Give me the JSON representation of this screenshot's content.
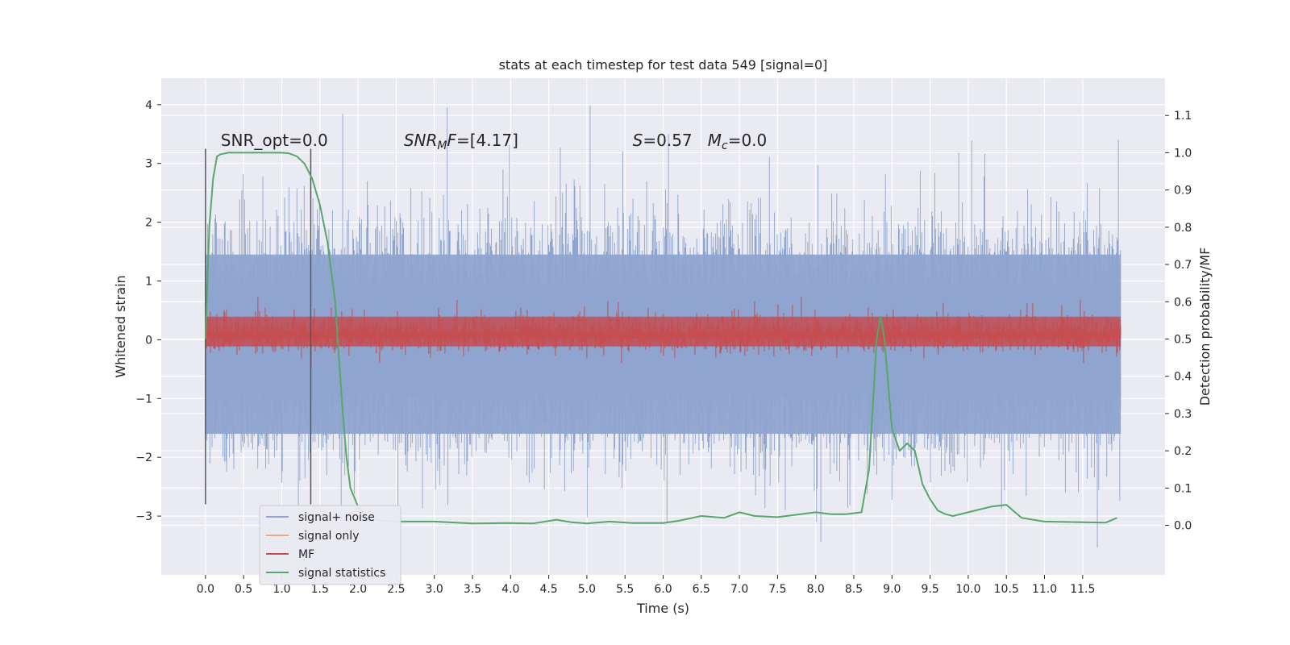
{
  "chart_data": {
    "type": "line",
    "title": "stats at each timestep for test data 549 [signal=0]",
    "xlabel": "Time (s)",
    "ylabel_left": "Whitened strain",
    "ylabel_right": "Detection probability/MF",
    "xlim": [
      -0.58,
      12.58
    ],
    "ylim_left": [
      -4.0,
      4.45
    ],
    "ylim_right": [
      -0.133,
      1.2
    ],
    "x_ticks": [
      0.0,
      0.5,
      1.0,
      1.5,
      2.0,
      2.5,
      3.0,
      3.5,
      4.0,
      4.5,
      5.0,
      5.5,
      6.0,
      6.5,
      7.0,
      7.5,
      8.0,
      8.5,
      9.0,
      9.5,
      10.0,
      10.5,
      11.0,
      11.5
    ],
    "x_tick_labels": [
      "0.0",
      "0.5",
      "1.0",
      "1.5",
      "2.0",
      "2.5",
      "3.0",
      "3.5",
      "4.0",
      "4.5",
      "5.0",
      "5.5",
      "6.0",
      "6.5",
      "7.0",
      "7.5",
      "8.0",
      "8.5",
      "9.0",
      "9.5",
      "10.0",
      "10.5",
      "11.0",
      "11.5"
    ],
    "y_left_ticks": [
      -3,
      -2,
      -1,
      0,
      1,
      2,
      3,
      4
    ],
    "y_left_tick_labels": [
      "−3",
      "−2",
      "−1",
      "0",
      "1",
      "2",
      "3",
      "4"
    ],
    "y_right_ticks": [
      0.0,
      0.1,
      0.2,
      0.3,
      0.4,
      0.5,
      0.6,
      0.7,
      0.8,
      0.9,
      1.0,
      1.1
    ],
    "y_right_tick_labels": [
      "0.0",
      "0.1",
      "0.2",
      "0.3",
      "0.4",
      "0.5",
      "0.6",
      "0.7",
      "0.8",
      "0.9",
      "1.0",
      "1.1"
    ],
    "grid": true,
    "legend_placement": "lower-left",
    "annotations": [
      {
        "text": "SNR_opt=0.0",
        "x": 0.2,
        "y": 3.3
      },
      {
        "text": "SNR_MF=[4.17]",
        "x": 2.6,
        "y": 3.3
      },
      {
        "text": "S=0.57   M_c=0.0",
        "x": 5.6,
        "y": 3.3
      }
    ],
    "vertical_lines": [
      {
        "x": 0.0,
        "y_range": [
          -2.8,
          3.25
        ]
      },
      {
        "x": 1.38,
        "y_range": [
          -2.8,
          3.25
        ]
      }
    ],
    "series": [
      {
        "name": "signal+ noise",
        "axis": "left",
        "color": "#8fa5cf",
        "noise": {
          "x_range": [
            0.0,
            12.0
          ],
          "dense_envelope": [
            -1.6,
            1.45
          ],
          "typical_spikes": [
            -2.3,
            2.4
          ],
          "max": 4.1,
          "min": -3.65
        }
      },
      {
        "name": "signal only",
        "axis": "left",
        "color": "#e8a88a",
        "x": [
          0.0,
          12.0
        ],
        "values": [
          0.0,
          0.0
        ]
      },
      {
        "name": "MF",
        "axis": "right",
        "color": "#c44e52",
        "noise": {
          "x_range": [
            0.0,
            12.0
          ],
          "band": [
            0.48,
            0.56
          ],
          "spike_max": 0.62
        }
      },
      {
        "name": "signal statistics",
        "axis": "right",
        "color": "#55a868",
        "x": [
          0.0,
          0.05,
          0.1,
          0.15,
          0.2,
          0.3,
          0.5,
          0.8,
          1.0,
          1.1,
          1.2,
          1.3,
          1.4,
          1.5,
          1.6,
          1.7,
          1.75,
          1.8,
          1.85,
          1.9,
          2.0,
          2.1,
          2.2,
          2.5,
          3.0,
          3.5,
          4.0,
          4.3,
          4.6,
          4.8,
          5.0,
          5.3,
          5.6,
          6.0,
          6.2,
          6.5,
          6.8,
          7.0,
          7.2,
          7.5,
          8.0,
          8.2,
          8.4,
          8.6,
          8.7,
          8.8,
          8.85,
          8.9,
          8.95,
          9.0,
          9.1,
          9.2,
          9.3,
          9.4,
          9.5,
          9.6,
          9.7,
          9.8,
          10.0,
          10.3,
          10.5,
          10.7,
          11.0,
          11.5,
          11.8,
          11.95
        ],
        "values": [
          0.5,
          0.8,
          0.93,
          0.99,
          0.996,
          1.0,
          1.0,
          1.0,
          1.0,
          0.998,
          0.99,
          0.97,
          0.93,
          0.86,
          0.76,
          0.6,
          0.45,
          0.3,
          0.18,
          0.1,
          0.05,
          0.025,
          0.015,
          0.01,
          0.01,
          0.005,
          0.006,
          0.005,
          0.015,
          0.008,
          0.005,
          0.01,
          0.006,
          0.006,
          0.012,
          0.025,
          0.02,
          0.035,
          0.025,
          0.022,
          0.035,
          0.03,
          0.03,
          0.035,
          0.15,
          0.5,
          0.56,
          0.5,
          0.38,
          0.26,
          0.2,
          0.22,
          0.2,
          0.11,
          0.07,
          0.04,
          0.03,
          0.025,
          0.035,
          0.05,
          0.055,
          0.02,
          0.01,
          0.008,
          0.007,
          0.02
        ]
      }
    ]
  }
}
